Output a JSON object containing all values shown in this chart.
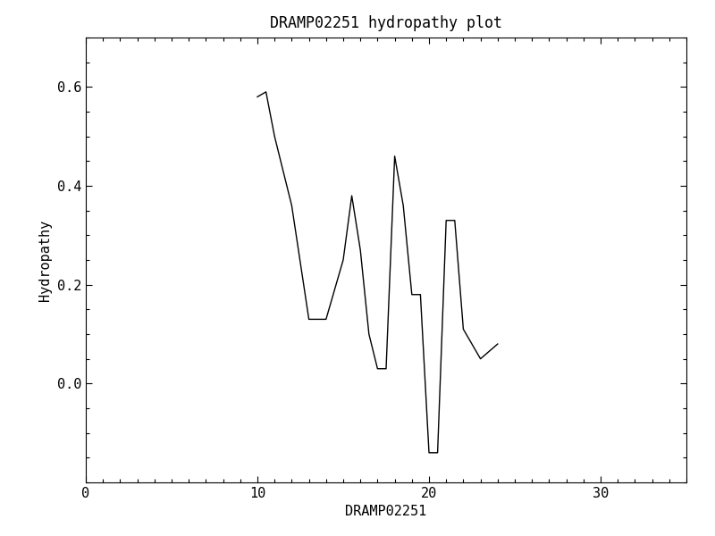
{
  "title": "DRAMP02251 hydropathy plot",
  "xlabel": "DRAMP02251",
  "ylabel": "Hydropathy",
  "xlim": [
    0,
    35
  ],
  "ylim": [
    -0.2,
    0.7
  ],
  "xticks": [
    0,
    10,
    20,
    30
  ],
  "yticks": [
    0.0,
    0.2,
    0.4,
    0.6
  ],
  "background_color": "#ffffff",
  "line_color": "#000000",
  "line_width": 1.0,
  "x": [
    10,
    10.5,
    11,
    12,
    13,
    14,
    15,
    15.5,
    16,
    16.5,
    17,
    17.5,
    18,
    18.5,
    19,
    19.5,
    20,
    20.5,
    21,
    21.5,
    22,
    23,
    24
  ],
  "y": [
    0.58,
    0.59,
    0.5,
    0.36,
    0.13,
    0.13,
    0.25,
    0.38,
    0.27,
    0.1,
    0.03,
    0.03,
    0.46,
    0.36,
    0.18,
    0.18,
    -0.14,
    -0.14,
    0.33,
    0.33,
    0.11,
    0.05,
    0.08
  ]
}
